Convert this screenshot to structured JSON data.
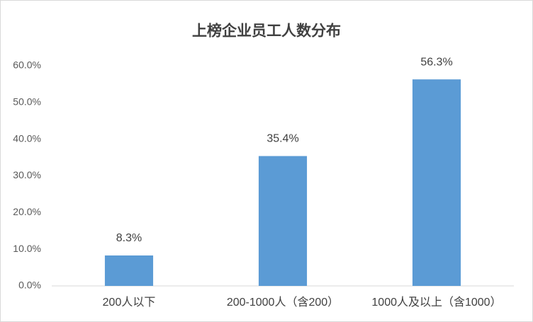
{
  "chart_data": {
    "type": "bar",
    "title": "上榜企业员工人数分布",
    "categories": [
      "200人以下",
      "200-1000人（含200）",
      "1000人及以上（含1000）"
    ],
    "values": [
      8.3,
      35.4,
      56.3
    ],
    "value_labels": [
      "8.3%",
      "35.4%",
      "56.3%"
    ],
    "color": "#5b9bd5",
    "ylim": [
      0,
      60
    ],
    "yticks": [
      {
        "value": 0,
        "label": "0.0%"
      },
      {
        "value": 10,
        "label": "10.0%"
      },
      {
        "value": 20,
        "label": "20.0%"
      },
      {
        "value": 30,
        "label": "30.0%"
      },
      {
        "value": 40,
        "label": "40.0%"
      },
      {
        "value": 50,
        "label": "50.0%"
      },
      {
        "value": 60,
        "label": "60.0%"
      }
    ],
    "grid": false
  }
}
